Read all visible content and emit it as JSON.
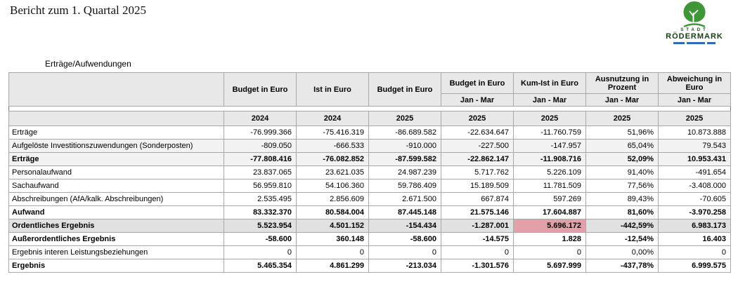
{
  "page": {
    "title": "Bericht zum 1. Quartal 2025",
    "section_label": "Erträge/Aufwendungen"
  },
  "logo": {
    "line1": "STADT",
    "line2": "RÖDERMARK",
    "tree_green": "#3f9637",
    "accent_blue": "#2e6db4"
  },
  "table": {
    "header_bg": "#e8e8e8",
    "highlight_color": "#e2a0a8",
    "columns": [
      {
        "label": "",
        "period": "",
        "year": ""
      },
      {
        "label": "Budget in Euro",
        "period": "",
        "year": "2024"
      },
      {
        "label": "Ist in Euro",
        "period": "",
        "year": "2024"
      },
      {
        "label": "Budget in Euro",
        "period": "",
        "year": "2025"
      },
      {
        "label": "Budget in Euro",
        "period": "Jan - Mar",
        "year": "2025"
      },
      {
        "label": "Kum-Ist in Euro",
        "period": "Jan - Mar",
        "year": "2025"
      },
      {
        "label": "Ausnutzung in Prozent",
        "period": "Jan - Mar",
        "year": "2025"
      },
      {
        "label": "Abweichung in Euro",
        "period": "Jan - Mar",
        "year": "2025"
      }
    ],
    "rows": [
      {
        "label": "Erträge",
        "bold": false,
        "shade": "white",
        "values": [
          "-76.999.366",
          "-75.416.319",
          "-86.689.582",
          "-22.634.647",
          "-11.760.759",
          "51,96%",
          "10.873.888"
        ]
      },
      {
        "label": "Aufgelöste Investitionszuwendungen (Sonderposten)",
        "bold": false,
        "shade": "light",
        "values": [
          "-809.050",
          "-666.533",
          "-910.000",
          "-227.500",
          "-147.957",
          "65,04%",
          "79.543"
        ]
      },
      {
        "label": "Erträge",
        "bold": true,
        "shade": "light",
        "values": [
          "-77.808.416",
          "-76.082.852",
          "-87.599.582",
          "-22.862.147",
          "-11.908.716",
          "52,09%",
          "10.953.431"
        ]
      },
      {
        "label": "Personalaufwand",
        "bold": false,
        "shade": "white",
        "values": [
          "23.837.065",
          "23.621.035",
          "24.987.239",
          "5.717.762",
          "5.226.109",
          "91,40%",
          "-491.654"
        ]
      },
      {
        "label": "Sachaufwand",
        "bold": false,
        "shade": "white",
        "values": [
          "56.959.810",
          "54.106.360",
          "59.786.409",
          "15.189.509",
          "11.781.509",
          "77,56%",
          "-3.408.000"
        ]
      },
      {
        "label": "Abschreibungen (AfA/kalk. Abschreibungen)",
        "bold": false,
        "shade": "white",
        "values": [
          "2.535.495",
          "2.856.609",
          "2.671.500",
          "667.874",
          "597.269",
          "89,43%",
          "-70.605"
        ]
      },
      {
        "label": "Aufwand",
        "bold": true,
        "shade": "white",
        "values": [
          "83.332.370",
          "80.584.004",
          "87.445.148",
          "21.575.146",
          "17.604.887",
          "81,60%",
          "-3.970.258"
        ]
      },
      {
        "label": "Ordentliches Ergebnis",
        "bold": true,
        "shade": "gray",
        "highlight_col": 4,
        "values": [
          "5.523.954",
          "4.501.152",
          "-154.434",
          "-1.287.001",
          "5.696.172",
          "-442,59%",
          "6.983.173"
        ]
      },
      {
        "label": "Außerordentliches Ergebnis",
        "bold": true,
        "shade": "white",
        "values": [
          "-58.600",
          "360.148",
          "-58.600",
          "-14.575",
          "1.828",
          "-12,54%",
          "16.403"
        ]
      },
      {
        "label": "Ergebnis interen Leistungsbeziehungen",
        "bold": false,
        "shade": "white",
        "values": [
          "0",
          "0",
          "0",
          "0",
          "0",
          "0,00%",
          "0"
        ]
      },
      {
        "label": "Ergebnis",
        "bold": true,
        "shade": "white",
        "values": [
          "5.465.354",
          "4.861.299",
          "-213.034",
          "-1.301.576",
          "5.697.999",
          "-437,78%",
          "6.999.575"
        ]
      }
    ]
  }
}
